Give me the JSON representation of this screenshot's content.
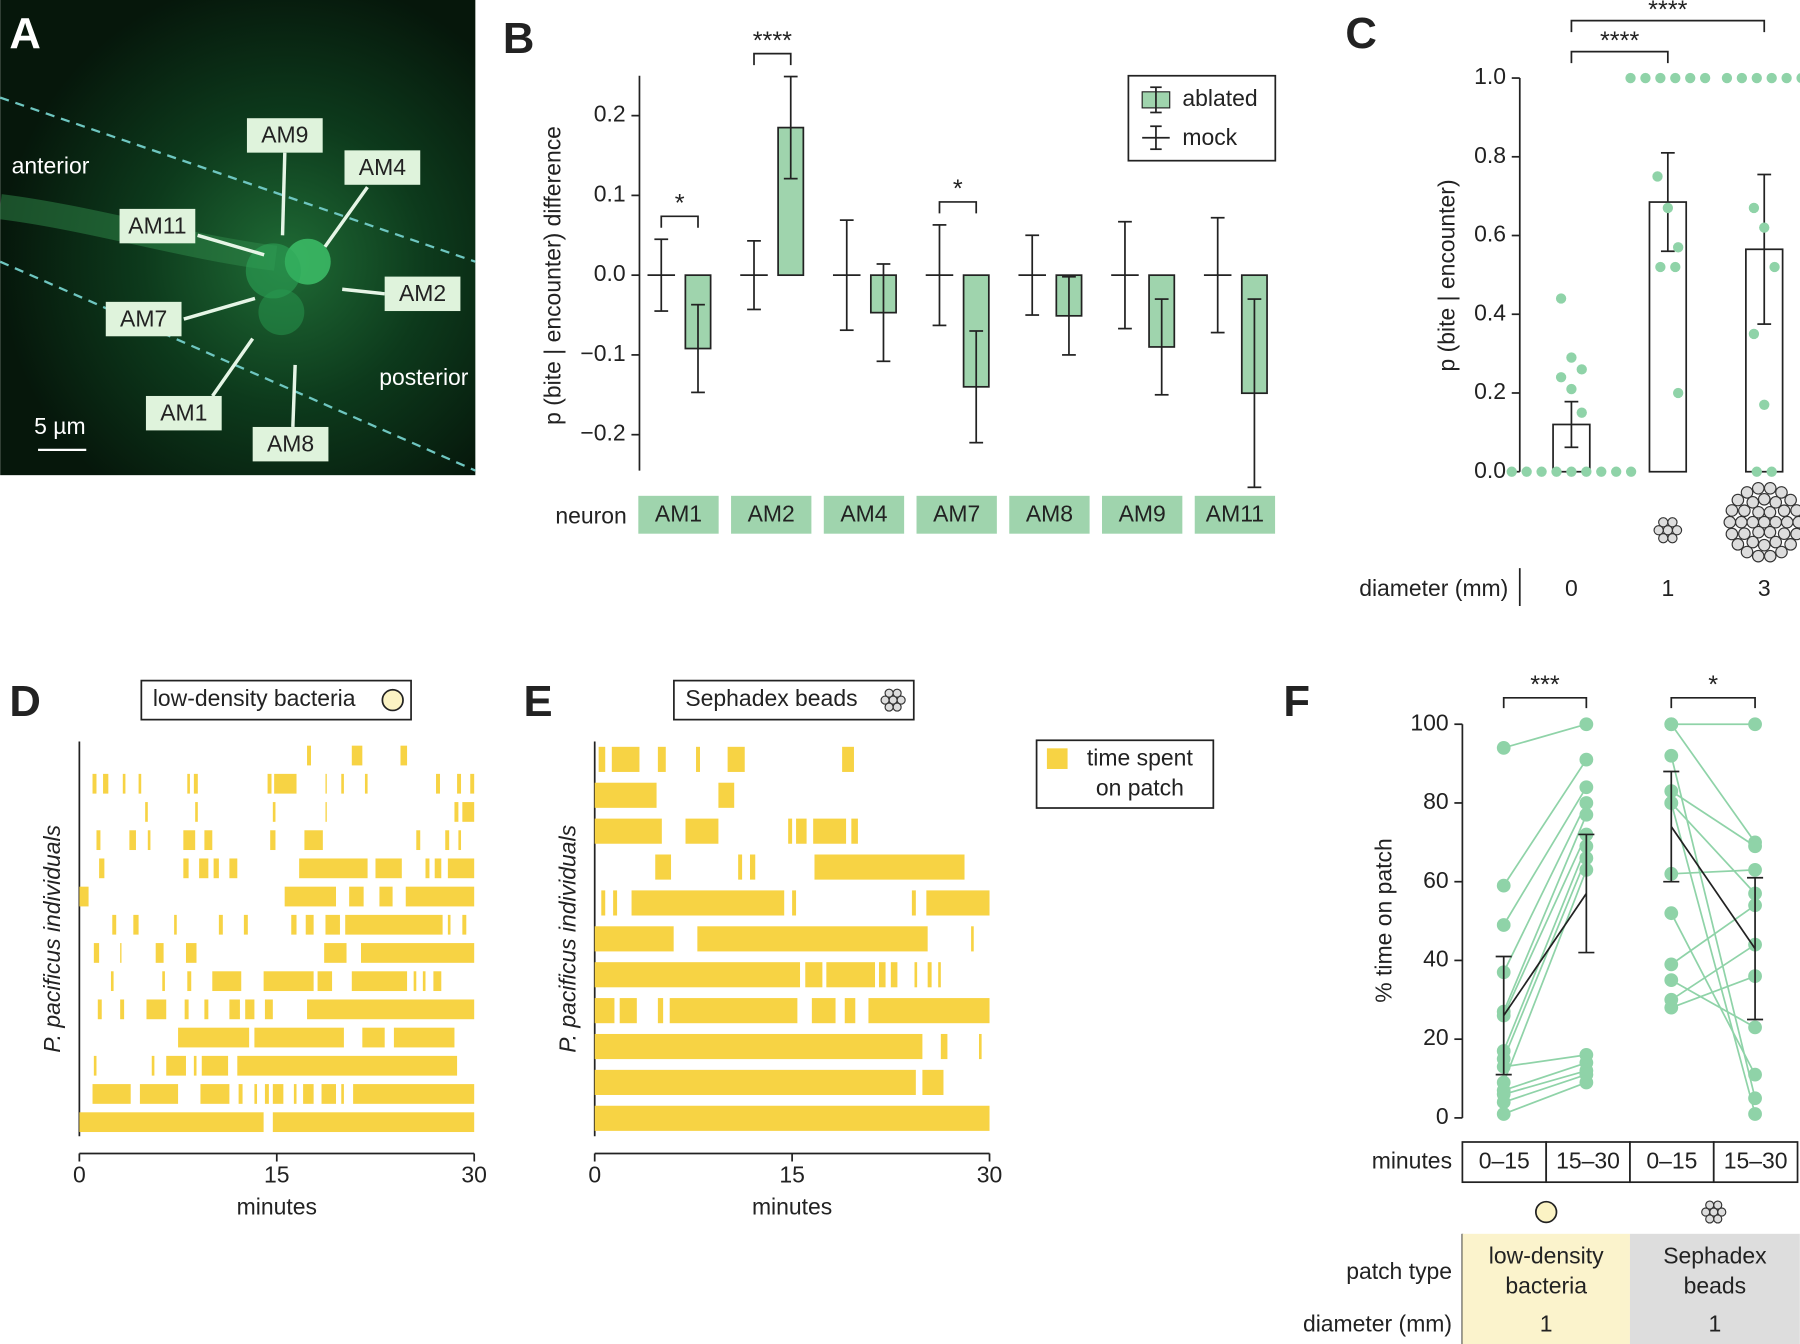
{
  "panel_labels": [
    "A",
    "B",
    "C",
    "D",
    "E",
    "F"
  ],
  "image": {
    "neurons": [
      "AM9",
      "AM4",
      "AM11",
      "AM2",
      "AM7",
      "AM1",
      "AM8"
    ],
    "anterior": "anterior",
    "posterior": "posterior",
    "scale_bar": "5 µm"
  },
  "chart_data": [
    {
      "type": "errorbar_bar",
      "ylabel": "p (bite | encounter) difference",
      "xlabel": "neuron",
      "categories": [
        "AM1",
        "AM2",
        "AM4",
        "AM7",
        "AM8",
        "AM9",
        "AM11"
      ],
      "series": [
        {
          "name": "ablated",
          "color": "#9fd4ad",
          "values": [
            -0.092,
            0.185,
            -0.047,
            -0.14,
            -0.051,
            -0.09,
            -0.148
          ],
          "errors": [
            0.055,
            0.064,
            0.061,
            0.07,
            0.049,
            0.06,
            0.118
          ]
        },
        {
          "name": "mock",
          "color": "#222222",
          "values": [
            0,
            0,
            0,
            0,
            0,
            0,
            0
          ],
          "errors": [
            0.045,
            0.043,
            0.069,
            0.063,
            0.05,
            0.067,
            0.072
          ]
        }
      ],
      "ylim": [
        -0.245,
        0.25
      ],
      "yticks": [
        {
          "value": -0.2,
          "label": "−0.2"
        },
        {
          "value": -0.1,
          "label": "−0.1"
        },
        {
          "value": 0,
          "label": "0.0"
        },
        {
          "value": 0.1,
          "label": "0.1"
        },
        {
          "value": 0.2,
          "label": "0.2"
        }
      ],
      "annotations": [
        {
          "category": 0,
          "text": "*"
        },
        {
          "category": 1,
          "text": "****"
        },
        {
          "category": 3,
          "text": "*"
        }
      ],
      "legend": "upper right"
    },
    {
      "type": "bar_points",
      "ylabel": "p (bite | encounter)",
      "xlabel": "diameter (mm)",
      "categories": [
        "0",
        "1",
        "3"
      ],
      "values": [
        0.12,
        0.685,
        0.565
      ],
      "errors": [
        0.058,
        0.125,
        0.19
      ],
      "points": [
        [
          0.44,
          0.29,
          0.26,
          0.24,
          0.21,
          0.15,
          0,
          0,
          0,
          0,
          0,
          0,
          0,
          0,
          0
        ],
        [
          1,
          1,
          1,
          1,
          1,
          1,
          0.75,
          0.67,
          0.57,
          0.52,
          0.52,
          0.2
        ],
        [
          1,
          1,
          1,
          1,
          1,
          1,
          0.67,
          0.62,
          0.52,
          0.35,
          0.17,
          0,
          0
        ]
      ],
      "color": "#8fd3a8",
      "ylim": [
        0,
        1
      ],
      "yticks": [
        {
          "value": 0,
          "label": "0.0"
        },
        {
          "value": 0.2,
          "label": "0.2"
        },
        {
          "value": 0.4,
          "label": "0.4"
        },
        {
          "value": 0.6,
          "label": "0.6"
        },
        {
          "value": 0.8,
          "label": "0.8"
        },
        {
          "value": 1,
          "label": "1.0"
        }
      ],
      "annotations": [
        {
          "from": 0,
          "to": 1,
          "text": "****"
        },
        {
          "from": 0,
          "to": 2,
          "text": "****"
        }
      ]
    },
    {
      "type": "raster",
      "title": "low-density bacteria",
      "ylabel": "P. pacificus individuals",
      "xlabel": "minutes",
      "color": "#f7d344",
      "xlim": [
        0,
        30
      ],
      "xticks": [
        0,
        15,
        30
      ],
      "rows": [
        [
          [
            17.3,
            17.6
          ],
          [
            20.7,
            21.5
          ],
          [
            24.4,
            24.9
          ]
        ],
        [
          [
            1.0,
            1.3
          ],
          [
            1.8,
            2.2
          ],
          [
            3.3,
            3.5
          ],
          [
            4.5,
            4.7
          ],
          [
            8.2,
            8.4
          ],
          [
            8.7,
            9.0
          ],
          [
            14.3,
            14.6
          ],
          [
            14.8,
            16.5
          ],
          [
            18.7,
            18.8
          ],
          [
            19.9,
            20.1
          ],
          [
            21.7,
            21.9
          ],
          [
            27.1,
            27.4
          ],
          [
            28.7,
            29.0
          ],
          [
            29.7,
            30
          ]
        ],
        [
          [
            5.0,
            5.2
          ],
          [
            8.8,
            9.0
          ],
          [
            14.7,
            14.9
          ],
          [
            18.7,
            18.8
          ],
          [
            28.5,
            28.8
          ],
          [
            29.1,
            30
          ]
        ],
        [
          [
            1.3,
            1.6
          ],
          [
            3.8,
            4.3
          ],
          [
            5.2,
            5.4
          ],
          [
            7.9,
            8.8
          ],
          [
            9.5,
            10.1
          ],
          [
            14.5,
            14.9
          ],
          [
            17.1,
            18.5
          ],
          [
            25.6,
            25.9
          ],
          [
            27.8,
            28.1
          ],
          [
            28.8,
            29.0
          ]
        ],
        [
          [
            1.5,
            1.9
          ],
          [
            7.9,
            8.3
          ],
          [
            9.1,
            9.8
          ],
          [
            10.2,
            10.6
          ],
          [
            11.4,
            12.0
          ],
          [
            16.7,
            21.9
          ],
          [
            22.5,
            24.5
          ],
          [
            26.3,
            26.6
          ],
          [
            27.0,
            27.5
          ],
          [
            28.0,
            30
          ]
        ],
        [
          [
            0,
            0.7
          ],
          [
            15.6,
            19.5
          ],
          [
            20.5,
            21.6
          ],
          [
            22.8,
            23.8
          ],
          [
            24.8,
            30
          ]
        ],
        [
          [
            2.5,
            2.8
          ],
          [
            4.1,
            4.5
          ],
          [
            7.2,
            7.4
          ],
          [
            10.6,
            10.9
          ],
          [
            12.5,
            12.8
          ],
          [
            16.1,
            16.5
          ],
          [
            17.2,
            17.8
          ],
          [
            18.7,
            19.8
          ],
          [
            20.2,
            27.6
          ],
          [
            28.0,
            28.2
          ],
          [
            29.1,
            29.4
          ]
        ],
        [
          [
            1.1,
            1.5
          ],
          [
            3.1,
            3.2
          ],
          [
            5.8,
            6.4
          ],
          [
            8.1,
            8.9
          ],
          [
            18.6,
            20.3
          ],
          [
            21.4,
            30
          ]
        ],
        [
          [
            2.4,
            2.6
          ],
          [
            6.3,
            6.5
          ],
          [
            8.2,
            8.5
          ],
          [
            10.1,
            12.3
          ],
          [
            14.0,
            17.8
          ],
          [
            18.1,
            19.2
          ],
          [
            20.7,
            24.9
          ],
          [
            25.4,
            25.6
          ],
          [
            26.1,
            26.3
          ],
          [
            26.9,
            27.5
          ]
        ],
        [
          [
            1.4,
            1.7
          ],
          [
            3.1,
            3.4
          ],
          [
            5.1,
            6.6
          ],
          [
            8.0,
            8.3
          ],
          [
            9.5,
            9.8
          ],
          [
            11.4,
            12.2
          ],
          [
            12.6,
            13.3
          ],
          [
            14.1,
            14.7
          ],
          [
            17.3,
            30
          ]
        ],
        [
          [
            7.5,
            12.9
          ],
          [
            13.3,
            20.1
          ],
          [
            21.5,
            23.2
          ],
          [
            23.9,
            28.5
          ]
        ],
        [
          [
            1.1,
            1.3
          ],
          [
            5.5,
            5.7
          ],
          [
            6.6,
            8.1
          ],
          [
            8.7,
            8.9
          ],
          [
            9.3,
            11.3
          ],
          [
            12.0,
            28.7
          ]
        ],
        [
          [
            1.0,
            3.9
          ],
          [
            4.6,
            7.5
          ],
          [
            9.2,
            11.4
          ],
          [
            12.1,
            12.4
          ],
          [
            13.3,
            13.5
          ],
          [
            14.1,
            14.4
          ],
          [
            14.7,
            15.5
          ],
          [
            16.3,
            16.5
          ],
          [
            17.0,
            17.8
          ],
          [
            18.4,
            19.5
          ],
          [
            19.9,
            20.1
          ],
          [
            20.8,
            30
          ]
        ],
        [
          [
            0,
            14.0
          ],
          [
            14.7,
            30
          ]
        ]
      ]
    },
    {
      "type": "raster",
      "title": "Sephadex beads",
      "ylabel": "P. pacificus individuals",
      "xlabel": "minutes",
      "color": "#f7d344",
      "legend": "time spent on patch",
      "xlim": [
        0,
        30
      ],
      "xticks": [
        0,
        15,
        30
      ],
      "rows": [
        [
          [
            0.3,
            0.8
          ],
          [
            1.3,
            3.4
          ],
          [
            4.8,
            5.4
          ],
          [
            7.7,
            8.0
          ],
          [
            10.1,
            11.4
          ],
          [
            18.8,
            19.7
          ]
        ],
        [
          [
            0,
            4.7
          ],
          [
            9.4,
            10.6
          ]
        ],
        [
          [
            0,
            5.1
          ],
          [
            6.9,
            9.4
          ],
          [
            14.7,
            15.0
          ],
          [
            15.3,
            16.1
          ],
          [
            16.6,
            19.1
          ],
          [
            19.5,
            20.0
          ]
        ],
        [
          [
            4.6,
            5.8
          ],
          [
            10.9,
            11.2
          ],
          [
            11.8,
            12.2
          ],
          [
            16.7,
            28.1
          ]
        ],
        [
          [
            0.5,
            0.8
          ],
          [
            1.4,
            1.7
          ],
          [
            2.8,
            14.4
          ],
          [
            15.0,
            15.3
          ],
          [
            24.1,
            24.4
          ],
          [
            25.2,
            30
          ]
        ],
        [
          [
            0,
            6.0
          ],
          [
            7.8,
            25.3
          ],
          [
            28.6,
            28.8
          ]
        ],
        [
          [
            0,
            15.6
          ],
          [
            16.0,
            17.3
          ],
          [
            17.6,
            21.3
          ],
          [
            21.6,
            22.1
          ],
          [
            22.5,
            23.0
          ],
          [
            24.3,
            24.5
          ],
          [
            25.3,
            25.6
          ],
          [
            26.1,
            26.3
          ]
        ],
        [
          [
            0,
            1.5
          ],
          [
            1.9,
            3.2
          ],
          [
            4.8,
            5.2
          ],
          [
            5.7,
            15.4
          ],
          [
            16.5,
            18.3
          ],
          [
            19.0,
            19.8
          ],
          [
            20.8,
            30
          ]
        ],
        [
          [
            0,
            24.9
          ],
          [
            26.3,
            26.8
          ],
          [
            29.2,
            29.4
          ]
        ],
        [
          [
            0,
            24.4
          ],
          [
            24.9,
            26.5
          ]
        ],
        [
          [
            0,
            30
          ]
        ]
      ]
    },
    {
      "type": "paired",
      "ylabel": "% time on patch",
      "xlabel": "minutes",
      "color": "#8fd3a8",
      "ylim": [
        0,
        100
      ],
      "yticks": [
        0,
        20,
        40,
        60,
        80,
        100
      ],
      "row_labels": [
        "patch type",
        "diameter (mm)"
      ],
      "groups": [
        {
          "name": "low-density bacteria",
          "diameter": "1",
          "periods": [
            "0–15",
            "15–30"
          ],
          "before": [
            94,
            59,
            49,
            37,
            27,
            26,
            17,
            15,
            13,
            9,
            7,
            6,
            4,
            1
          ],
          "after": [
            100,
            91,
            84,
            80,
            77,
            72,
            69,
            66,
            16,
            63,
            14,
            12,
            11,
            9
          ],
          "mean": [
            26,
            57
          ],
          "error": [
            15,
            15
          ],
          "significance": "***"
        },
        {
          "name": "Sephadex beads",
          "diameter": "1",
          "periods": [
            "0–15",
            "15–30"
          ],
          "before": [
            100,
            100,
            92,
            83,
            80,
            80,
            62,
            52,
            39,
            35,
            30,
            28
          ],
          "after": [
            100,
            70,
            5,
            69,
            1,
            57,
            63,
            11,
            54,
            23,
            44,
            36
          ],
          "mean": [
            74,
            43
          ],
          "error": [
            14,
            18
          ],
          "significance": "*"
        }
      ]
    }
  ]
}
